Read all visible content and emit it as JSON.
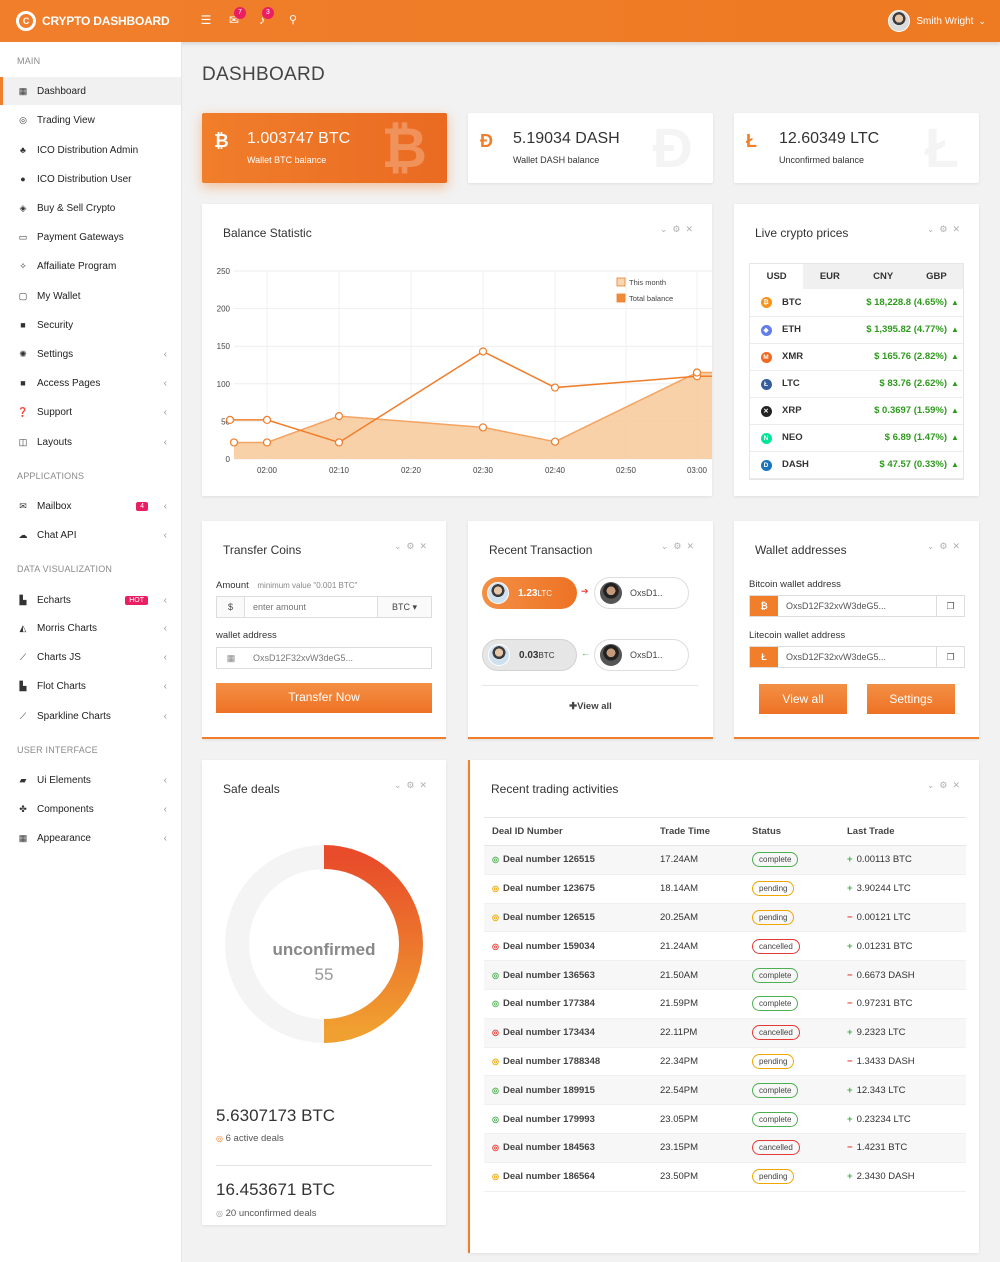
{
  "app": {
    "title": "CRYPTO DASHBOARD",
    "logo_letter": "C",
    "user": "Smith Wright",
    "mail_count": "7",
    "bell_count": "3"
  },
  "sidebar": {
    "sections": [
      {
        "label": "MAIN"
      },
      {
        "label": "APPLICATIONS"
      },
      {
        "label": "DATA VISUALIZATION"
      },
      {
        "label": "USER INTERFACE"
      }
    ],
    "items": [
      {
        "label": "Dashboard",
        "icon": "grid-icon"
      },
      {
        "label": "Trading View",
        "icon": "target-icon"
      },
      {
        "label": "ICO Distribution Admin",
        "icon": "sitemap-icon"
      },
      {
        "label": "ICO Distribution User",
        "icon": "user-icon"
      },
      {
        "label": "Buy & Sell Crypto",
        "icon": "database-icon"
      },
      {
        "label": "Payment Gateways",
        "icon": "card-icon"
      },
      {
        "label": "Affailiate Program",
        "icon": "crosshair-icon"
      },
      {
        "label": "My Wallet",
        "icon": "wallet-icon"
      },
      {
        "label": "Security",
        "icon": "lock-icon"
      },
      {
        "label": "Settings",
        "icon": "gear-icon"
      },
      {
        "label": "Access Pages",
        "icon": "lock-icon"
      },
      {
        "label": "Support",
        "icon": "question-icon"
      },
      {
        "label": "Layouts",
        "icon": "columns-icon"
      },
      {
        "label": "Mailbox",
        "icon": "envelope-icon",
        "badge": "4"
      },
      {
        "label": "Chat API",
        "icon": "chat-icon"
      },
      {
        "label": "Echarts",
        "icon": "bar-chart-icon",
        "badge": "HOT"
      },
      {
        "label": "Morris Charts",
        "icon": "area-chart-icon"
      },
      {
        "label": "Charts JS",
        "icon": "line-chart-icon"
      },
      {
        "label": "Flot Charts",
        "icon": "bar-chart-icon"
      },
      {
        "label": "Sparkline Charts",
        "icon": "line-chart-icon"
      },
      {
        "label": "Ui Elements",
        "icon": "folder-icon"
      },
      {
        "label": "Components",
        "icon": "puzzle-icon"
      },
      {
        "label": "Appearance",
        "icon": "grid-icon"
      }
    ]
  },
  "page": {
    "title": "DASHBOARD"
  },
  "balances": [
    {
      "symbol": "₿",
      "value": "1.003747 BTC",
      "label": "Wallet BTC balance"
    },
    {
      "symbol": "Đ",
      "value": "5.19034 DASH",
      "label": "Wallet DASH balance"
    },
    {
      "symbol": "Ł",
      "value": "12.60349 LTC",
      "label": "Unconfirmed balance"
    }
  ],
  "balance_statistic": {
    "title": "Balance Statistic"
  },
  "chart_data": {
    "type": "line",
    "x": [
      "02:00",
      "02:10",
      "02:20",
      "02:30",
      "02:40",
      "02:50",
      "03:00"
    ],
    "series": [
      {
        "name": "This month",
        "values": [
          52,
          22,
          null,
          143,
          95,
          null,
          110
        ]
      },
      {
        "name": "Total balance",
        "values": [
          22,
          57,
          null,
          42,
          23,
          null,
          115
        ]
      }
    ],
    "y_ticks": [
      0,
      50,
      100,
      150,
      200,
      250
    ],
    "ylim": [
      0,
      250
    ],
    "legend": "top-right"
  },
  "live_prices": {
    "title": "Live crypto prices",
    "tabs": [
      "USD",
      "EUR",
      "CNY",
      "GBP"
    ],
    "rows": [
      {
        "coin": "BTC",
        "price": "$ 18,228.8 (4.65%)",
        "color": "#f7931a",
        "glyph": "₿"
      },
      {
        "coin": "ETH",
        "price": "$ 1,395.82 (4.77%)",
        "color": "#627eea",
        "glyph": "◆"
      },
      {
        "coin": "XMR",
        "price": "$ 165.76 (2.82%)",
        "color": "#f26822",
        "glyph": "M"
      },
      {
        "coin": "LTC",
        "price": "$ 83.76 (2.62%)",
        "color": "#345d9d",
        "glyph": "Ł"
      },
      {
        "coin": "XRP",
        "price": "$ 0.3697 (1.59%)",
        "color": "#222222",
        "glyph": "✕"
      },
      {
        "coin": "NEO",
        "price": "$ 6.89 (1.47%)",
        "color": "#00e599",
        "glyph": "N"
      },
      {
        "coin": "DASH",
        "price": "$ 47.57 (0.33%)",
        "color": "#1c75bc",
        "glyph": "D"
      }
    ]
  },
  "transfer": {
    "title": "Transfer Coins",
    "amount_label": "Amount",
    "hint": "minimum value \"0.001 BTC\"",
    "currency_symbol": "$",
    "placeholder": "enter amount",
    "coin": "BTC ▾",
    "wallet_label": "wallet address",
    "wallet_value": "OxsD12F32xvW3deG5...",
    "button": "Transfer Now"
  },
  "recent_tx": {
    "title": "Recent Transaction",
    "items": [
      {
        "amount": "1.23",
        "unit": "LTC",
        "to": "OxsD1..",
        "arrow": "➔"
      },
      {
        "amount": "0.03",
        "unit": "BTC",
        "to": "OxsD1..",
        "arrow": "←"
      }
    ],
    "view_all": "✚View all"
  },
  "wallet": {
    "title": "Wallet addresses",
    "btc_label": "Bitcoin wallet address",
    "btc_value": "OxsD12F32xvW3deG5...",
    "ltc_label": "Litecoin wallet address",
    "ltc_value": "OxsD12F32xvW3deG5...",
    "view_all": "View all",
    "settings": "Settings"
  },
  "safe_deals": {
    "title": "Safe deals",
    "donut_label": "unconfirmed",
    "donut_value": "55",
    "fill": 0.5,
    "stat1_value": "5.6307173 BTC",
    "stat1_label": "6 active deals",
    "stat2_value": "16.453671 BTC",
    "stat2_label": "20 unconfirmed deals"
  },
  "trading": {
    "title": "Recent trading activities",
    "headers": [
      "Deal ID Number",
      "Trade Time",
      "Status",
      "Last Trade"
    ],
    "rows": [
      {
        "id": "Deal number 126515",
        "time": "17.24AM",
        "status": "complete",
        "sign": "+",
        "trade": "0.00113 BTC"
      },
      {
        "id": "Deal number 123675",
        "time": "18.14AM",
        "status": "pending",
        "sign": "+",
        "trade": "3.90244 LTC"
      },
      {
        "id": "Deal number 126515",
        "time": "20.25AM",
        "status": "pending",
        "sign": "−",
        "trade": "0.00121 LTC"
      },
      {
        "id": "Deal number 159034",
        "time": "21.24AM",
        "status": "cancelled",
        "sign": "+",
        "trade": "0.01231 BTC"
      },
      {
        "id": "Deal number 136563",
        "time": "21.50AM",
        "status": "complete",
        "sign": "−",
        "trade": "0.6673 DASH"
      },
      {
        "id": "Deal number 177384",
        "time": "21.59PM",
        "status": "complete",
        "sign": "−",
        "trade": "0.97231 BTC"
      },
      {
        "id": "Deal number 173434",
        "time": "22.11PM",
        "status": "cancelled",
        "sign": "+",
        "trade": "9.2323 LTC"
      },
      {
        "id": "Deal number 1788348",
        "time": "22.34PM",
        "status": "pending",
        "sign": "−",
        "trade": "1.3433 DASH"
      },
      {
        "id": "Deal number 189915",
        "time": "22.54PM",
        "status": "complete",
        "sign": "+",
        "trade": "12.343 LTC"
      },
      {
        "id": "Deal number 179993",
        "time": "23.05PM",
        "status": "complete",
        "sign": "+",
        "trade": "0.23234 LTC"
      },
      {
        "id": "Deal number 184563",
        "time": "23.15PM",
        "status": "cancelled",
        "sign": "−",
        "trade": "1.4231 BTC"
      },
      {
        "id": "Deal number 186564",
        "time": "23.50PM",
        "status": "pending",
        "sign": "+",
        "trade": "2.3430 DASH"
      }
    ]
  },
  "colors": {
    "accent": "#f07e2b",
    "green": "#4caf50",
    "red": "#e53935",
    "pending": "#f0a500"
  }
}
